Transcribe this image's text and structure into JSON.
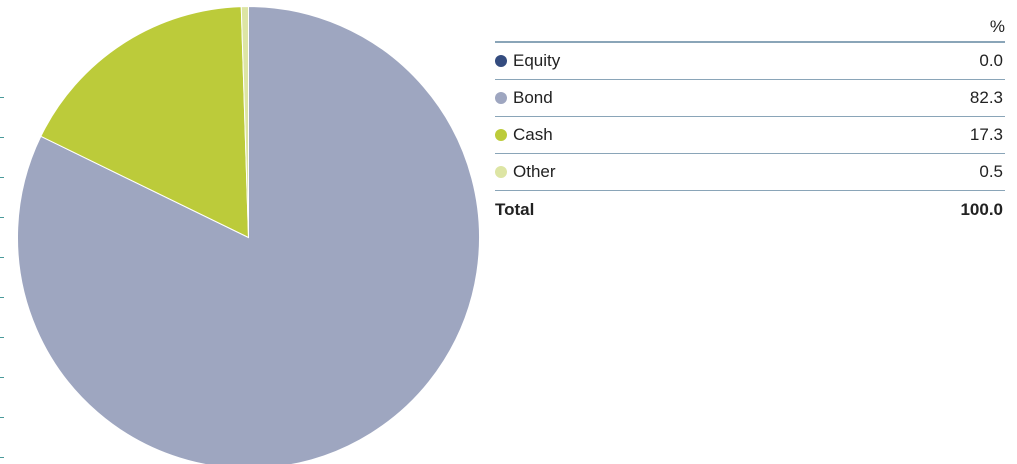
{
  "chart_data": {
    "type": "pie",
    "categories": [
      "Equity",
      "Bond",
      "Cash",
      "Other"
    ],
    "values": [
      0.0,
      82.3,
      17.3,
      0.5
    ],
    "colors": [
      "#344c7f",
      "#9ea6c0",
      "#bccb3a",
      "#dde5a4"
    ],
    "title": "",
    "start": "12 o'clock, clockwise"
  },
  "table": {
    "unit_header": "%",
    "rows": [
      {
        "label": "Equity",
        "value": "0.0",
        "color": "#344c7f"
      },
      {
        "label": "Bond",
        "value": "82.3",
        "color": "#9ea6c0"
      },
      {
        "label": "Cash",
        "value": "17.3",
        "color": "#bccb3a"
      },
      {
        "label": "Other",
        "value": "0.5",
        "color": "#dde5a4"
      }
    ],
    "total_label": "Total",
    "total_value": "100.0"
  }
}
